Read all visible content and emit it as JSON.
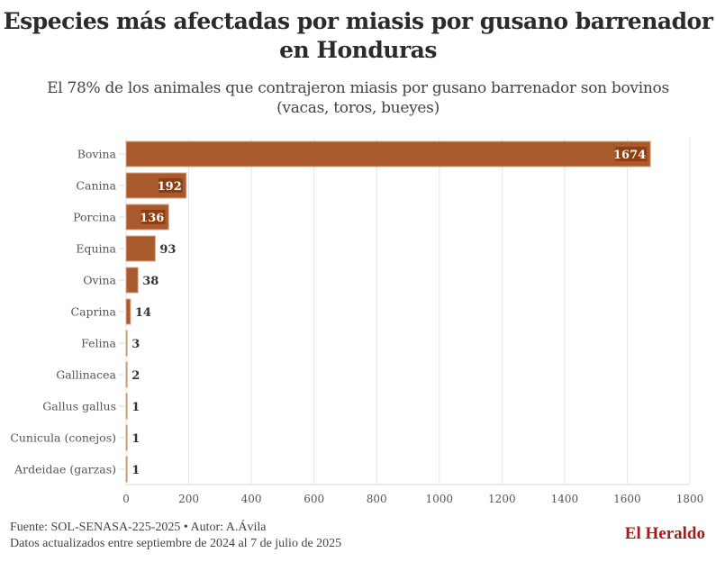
{
  "header": {
    "title_line1": "Especies más afectadas por miasis por gusano barrenador",
    "title_line2": "en Honduras",
    "subtitle_line1": "El 78% de los animales que contrajeron miasis por gusano barrenador son bovinos",
    "subtitle_line2": "(vacas, toros, bueyes)"
  },
  "footer": {
    "source": "Fuente: SOL-SENASA-225-2025 • Autor: A.Ávila",
    "note": "Datos actualizados entre septiembre de 2024 al 7 de julio de 2025",
    "brand": "El Heraldo"
  },
  "colors": {
    "bar": "#a95a2c",
    "bar_edge": "#d9a888",
    "label_bg": "#8e3e12",
    "grid": "#e6e6e6",
    "text": "#333333",
    "brand": "#a51b1b"
  },
  "chart_data": {
    "type": "bar",
    "orientation": "horizontal",
    "title": "Especies más afectadas por miasis por gusano barrenador en Honduras",
    "subtitle": "El 78% de los animales que contrajeron miasis por gusano barrenador son bovinos (vacas, toros, bueyes)",
    "categories": [
      "Bovina",
      "Canina",
      "Porcina",
      "Equina",
      "Ovina",
      "Caprina",
      "Felina",
      "Gallinacea",
      "Gallus gallus",
      "Cunicula (conejos)",
      "Ardeidae (garzas)"
    ],
    "values": [
      1674,
      192,
      136,
      93,
      38,
      14,
      3,
      2,
      1,
      1,
      1
    ],
    "xlabel": "",
    "ylabel": "",
    "xlim": [
      0,
      1800
    ],
    "xticks": [
      0,
      200,
      400,
      600,
      800,
      1000,
      1200,
      1400,
      1600,
      1800
    ],
    "grid": true,
    "legend": "none"
  }
}
